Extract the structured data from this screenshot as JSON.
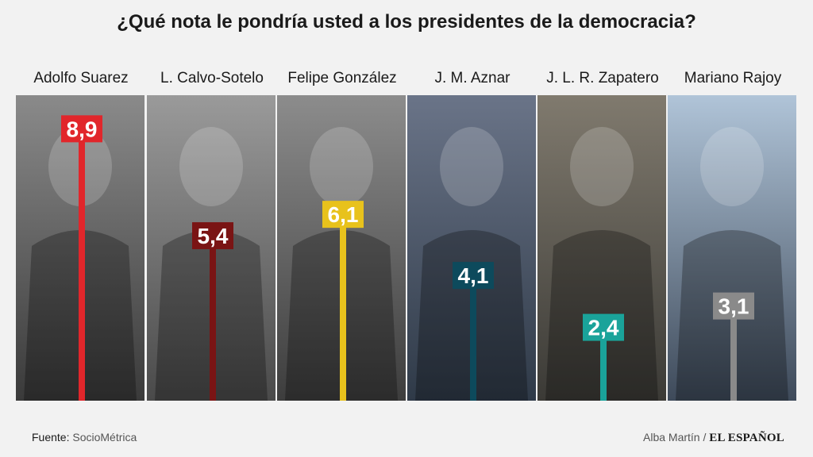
{
  "title": "¿Qué nota le pondría usted a los presidentes de la democracia?",
  "chart_data": {
    "type": "bar",
    "categories": [
      "Adolfo Suarez",
      "L. Calvo-Sotelo",
      "Felipe González",
      "J. M. Aznar",
      "J. L. R. Zapatero",
      "Mariano Rajoy"
    ],
    "values": [
      8.9,
      5.4,
      6.1,
      4.1,
      2.4,
      3.1
    ],
    "value_labels": [
      "8,9",
      "5,4",
      "6,1",
      "4,1",
      "2,4",
      "3,1"
    ],
    "colors": [
      "#e1262b",
      "#7a1414",
      "#e8c21c",
      "#0d4a5c",
      "#1aa39a",
      "#8a8a8a"
    ],
    "ylim": [
      0,
      10
    ]
  },
  "footer": {
    "source_label": "Fuente:",
    "source_value": "SocioMétrica",
    "author": "Alba Martín /",
    "brand": "EL ESPAÑOL"
  }
}
